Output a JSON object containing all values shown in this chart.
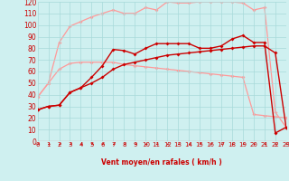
{
  "x": [
    0,
    1,
    2,
    3,
    4,
    5,
    6,
    7,
    8,
    9,
    10,
    11,
    12,
    13,
    14,
    15,
    16,
    17,
    18,
    19,
    20,
    21,
    22,
    23
  ],
  "line_dark1": [
    27,
    30,
    31,
    42,
    46,
    55,
    65,
    79,
    78,
    75,
    80,
    84,
    84,
    84,
    84,
    80,
    80,
    82,
    88,
    91,
    85,
    85,
    7,
    12
  ],
  "line_dark2": [
    27,
    30,
    31,
    42,
    46,
    50,
    55,
    62,
    66,
    68,
    70,
    72,
    74,
    75,
    76,
    77,
    78,
    79,
    80,
    81,
    82,
    82,
    76,
    12
  ],
  "line_light1": [
    38,
    50,
    62,
    67,
    68,
    68,
    68,
    68,
    66,
    65,
    64,
    63,
    62,
    61,
    60,
    59,
    58,
    57,
    56,
    55,
    23,
    22,
    21,
    20
  ],
  "line_light2": [
    38,
    50,
    85,
    99,
    103,
    107,
    110,
    113,
    110,
    110,
    115,
    113,
    120,
    119,
    119,
    120,
    120,
    120,
    120,
    119,
    113,
    115,
    25,
    12
  ],
  "bg_color": "#cff0f0",
  "grid_color": "#a8dada",
  "dark_color": "#cc0000",
  "light_color": "#ff9999",
  "xlabel": "Vent moyen/en rafales ( km/h )",
  "ylim": [
    0,
    120
  ],
  "xlim": [
    0,
    23
  ],
  "yticks": [
    0,
    10,
    20,
    30,
    40,
    50,
    60,
    70,
    80,
    90,
    100,
    110,
    120
  ],
  "xticks": [
    0,
    1,
    2,
    3,
    4,
    5,
    6,
    7,
    8,
    9,
    10,
    11,
    12,
    13,
    14,
    15,
    16,
    17,
    18,
    19,
    20,
    21,
    22,
    23
  ]
}
